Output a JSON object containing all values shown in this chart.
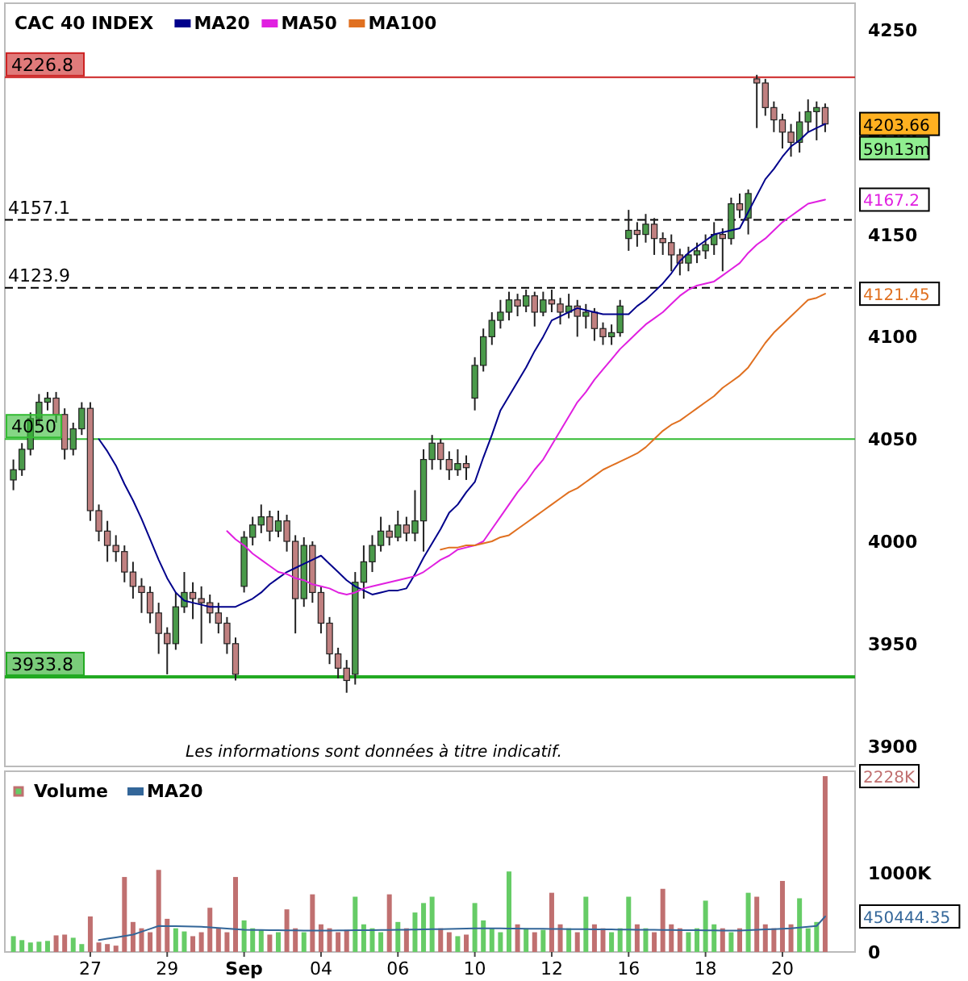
{
  "chart_data": [
    {
      "type": "candlestick",
      "title": "CAC 40 INDEX",
      "legend": "top left",
      "tick_labels": "y",
      "colors": [
        "#4a9a4a",
        "#4a9a4a",
        "#4a9a4a",
        "#4a9a4a",
        "#4a9a4a",
        "#c08080",
        "#c08080",
        "#4a9a4a",
        "#4a9a4a",
        "#c08080",
        "#c08080",
        "#c08080",
        "#c08080",
        "#c08080",
        "#c08080",
        "#c08080",
        "#c08080",
        "#c08080",
        "#c08080",
        "#4a9a4a",
        "#4a9a4a",
        "#c08080",
        "#c08080",
        "#c08080",
        "#c08080",
        "#c08080",
        "#c08080",
        "#4a9a4a",
        "#4a9a4a",
        "#4a9a4a",
        "#c08080",
        "#4a9a4a",
        "#c08080",
        "#c08080",
        "#4a9a4a",
        "#c08080",
        "#c08080",
        "#c08080",
        "#c08080",
        "#c08080",
        "#4a9a4a",
        "#4a9a4a",
        "#4a9a4a",
        "#4a9a4a",
        "#c08080",
        "#4a9a4a",
        "#c08080",
        "#4a9a4a",
        "#4a9a4a",
        "#4a9a4a",
        "#c08080",
        "#c08080",
        "#4a9a4a",
        "#c08080",
        "#4a9a4a",
        "#4a9a4a",
        "#4a9a4a",
        "#4a9a4a",
        "#4a9a4a",
        "#c08080",
        "#4a9a4a",
        "#c08080",
        "#4a9a4a",
        "#c08080",
        "#c08080",
        "#4a9a4a",
        "#c08080",
        "#4a9a4a",
        "#c08080",
        "#c08080",
        "#4a9a4a",
        "#4a9a4a",
        "#4a9a4a",
        "#c08080",
        "#4a9a4a",
        "#c08080",
        "#c08080",
        "#c08080",
        "#c08080",
        "#4a9a4a",
        "#4a9a4a",
        "#4a9a4a",
        "#4a9a4a",
        "#c08080",
        "#4a9a4a",
        "#c08080",
        "#4a9a4a",
        "#c08080",
        "#c08080",
        "#c08080",
        "#c08080",
        "#c08080",
        "#4a9a4a",
        "#4a9a4a",
        "#4a9a4a",
        "#c08080"
      ],
      "categories": [
        null,
        null,
        null,
        null,
        null,
        null,
        null,
        null,
        null,
        null,
        null,
        null,
        null,
        null,
        null,
        null,
        null,
        null,
        null,
        null,
        null,
        null,
        null,
        null,
        null,
        null,
        null,
        null,
        null,
        null,
        null,
        null,
        null,
        null,
        null,
        null,
        null,
        null,
        null,
        null,
        null,
        null,
        null,
        null,
        null,
        null,
        null,
        null,
        null,
        null,
        null,
        null,
        null,
        null,
        null,
        null,
        null,
        null,
        null,
        null,
        null,
        null,
        null,
        null,
        null,
        null,
        null,
        null,
        null,
        null,
        null,
        null,
        null,
        null,
        null,
        null,
        null,
        null,
        null,
        null,
        null,
        null,
        null,
        null,
        null,
        null,
        null,
        null,
        null,
        null,
        null,
        null,
        null,
        null,
        null,
        null
      ],
      "ohlc": [
        [
          4030,
          4040,
          4025,
          4035
        ],
        [
          4035,
          4048,
          4032,
          4045
        ],
        [
          4045,
          4063,
          4042,
          4060
        ],
        [
          4060,
          4072,
          4057,
          4068
        ],
        [
          4068,
          4073,
          4064,
          4070
        ],
        [
          4070,
          4073,
          4058,
          4062
        ],
        [
          4062,
          4065,
          4040,
          4045
        ],
        [
          4045,
          4058,
          4042,
          4055
        ],
        [
          4055,
          4068,
          4052,
          4065
        ],
        [
          4065,
          4068,
          4010,
          4015
        ],
        [
          4015,
          4018,
          4000,
          4005
        ],
        [
          4005,
          4010,
          3990,
          3998
        ],
        [
          3998,
          4003,
          3990,
          3995
        ],
        [
          3995,
          3998,
          3980,
          3985
        ],
        [
          3985,
          3990,
          3972,
          3978
        ],
        [
          3978,
          3982,
          3965,
          3975
        ],
        [
          3975,
          3978,
          3960,
          3965
        ],
        [
          3965,
          3970,
          3945,
          3955
        ],
        [
          3955,
          3958,
          3935,
          3950
        ],
        [
          3950,
          3975,
          3947,
          3968
        ],
        [
          3968,
          3985,
          3965,
          3975
        ],
        [
          3975,
          3980,
          3962,
          3972
        ],
        [
          3972,
          3978,
          3950,
          3970
        ],
        [
          3970,
          3974,
          3960,
          3965
        ],
        [
          3965,
          3970,
          3955,
          3960
        ],
        [
          3960,
          3963,
          3945,
          3950
        ],
        [
          3950,
          3953,
          3932,
          3935
        ],
        [
          3978,
          4005,
          3975,
          4002
        ],
        [
          4002,
          4012,
          3998,
          4008
        ],
        [
          4008,
          4018,
          4004,
          4012
        ],
        [
          4012,
          4015,
          4000,
          4005
        ],
        [
          4005,
          4015,
          4002,
          4010
        ],
        [
          4010,
          4013,
          3995,
          4000
        ],
        [
          4000,
          4003,
          3955,
          3972
        ],
        [
          3972,
          4002,
          3968,
          3998
        ],
        [
          3998,
          4000,
          3970,
          3975
        ],
        [
          3975,
          3978,
          3955,
          3960
        ],
        [
          3960,
          3963,
          3940,
          3945
        ],
        [
          3945,
          3948,
          3933,
          3938
        ],
        [
          3938,
          3942,
          3926,
          3932
        ],
        [
          3935,
          3985,
          3930,
          3980
        ],
        [
          3980,
          3998,
          3972,
          3990
        ],
        [
          3990,
          4003,
          3985,
          3998
        ],
        [
          3998,
          4012,
          3995,
          4005
        ],
        [
          4005,
          4008,
          3998,
          4002
        ],
        [
          4002,
          4015,
          4000,
          4008
        ],
        [
          4008,
          4012,
          4000,
          4004
        ],
        [
          4004,
          4025,
          4000,
          4010
        ],
        [
          4010,
          4045,
          3995,
          4040
        ],
        [
          4040,
          4052,
          4035,
          4048
        ],
        [
          4048,
          4050,
          4035,
          4040
        ],
        [
          4040,
          4044,
          4030,
          4035
        ],
        [
          4035,
          4045,
          4032,
          4038
        ],
        [
          4038,
          4042,
          4030,
          4036
        ],
        [
          4070,
          4090,
          4064,
          4086
        ],
        [
          4086,
          4104,
          4083,
          4100
        ],
        [
          4100,
          4112,
          4096,
          4108
        ],
        [
          4108,
          4118,
          4104,
          4112
        ],
        [
          4112,
          4122,
          4108,
          4118
        ],
        [
          4118,
          4121,
          4110,
          4115
        ],
        [
          4115,
          4123,
          4112,
          4120
        ],
        [
          4120,
          4122,
          4105,
          4112
        ],
        [
          4112,
          4122,
          4110,
          4118
        ],
        [
          4118,
          4123,
          4112,
          4116
        ],
        [
          4116,
          4119,
          4106,
          4112
        ],
        [
          4112,
          4121,
          4109,
          4115
        ],
        [
          4115,
          4118,
          4100,
          4110
        ],
        [
          4110,
          4116,
          4104,
          4112
        ],
        [
          4112,
          4114,
          4098,
          4104
        ],
        [
          4104,
          4107,
          4096,
          4100
        ],
        [
          4100,
          4106,
          4096,
          4102
        ],
        [
          4102,
          4118,
          4100,
          4115
        ],
        [
          4148,
          4162,
          4142,
          4152
        ],
        [
          4152,
          4156,
          4144,
          4150
        ],
        [
          4150,
          4160,
          4146,
          4155
        ],
        [
          4155,
          4158,
          4140,
          4148
        ],
        [
          4148,
          4151,
          4140,
          4146
        ],
        [
          4146,
          4150,
          4132,
          4140
        ],
        [
          4140,
          4143,
          4130,
          4136
        ],
        [
          4136,
          4144,
          4132,
          4140
        ],
        [
          4140,
          4146,
          4136,
          4142
        ],
        [
          4142,
          4150,
          4138,
          4145
        ],
        [
          4145,
          4156,
          4140,
          4150
        ],
        [
          4150,
          4153,
          4132,
          4148
        ],
        [
          4148,
          4168,
          4145,
          4165
        ],
        [
          4165,
          4170,
          4158,
          4162
        ],
        [
          4158,
          4172,
          4150,
          4170
        ],
        [
          4226,
          4228,
          4202,
          4224
        ],
        [
          4224,
          4226,
          4208,
          4212
        ],
        [
          4212,
          4215,
          4200,
          4206
        ],
        [
          4206,
          4209,
          4192,
          4200
        ],
        [
          4200,
          4204,
          4188,
          4195
        ],
        [
          4195,
          4210,
          4190,
          4205
        ],
        [
          4205,
          4216,
          4200,
          4210
        ],
        [
          4210,
          4215,
          4196,
          4212
        ],
        [
          4212,
          4214,
          4200,
          4204
        ]
      ],
      "series": [
        {
          "type": "line",
          "name": "MA20",
          "color": "#00008b",
          "values": [
            null,
            null,
            null,
            null,
            null,
            null,
            null,
            null,
            null,
            null,
            4050,
            4044,
            4037,
            4028,
            4020,
            4011,
            4001,
            3991,
            3982,
            3975,
            3971,
            3970,
            3969,
            3968,
            3968,
            3968,
            3968,
            3970,
            3972,
            3975,
            3979,
            3982,
            3985,
            3987,
            3989,
            3991,
            3993,
            3989,
            3985,
            3981,
            3978,
            3976,
            3974,
            3975,
            3976,
            3976,
            3977,
            3984,
            3992,
            3999,
            4006,
            4014,
            4018,
            4024,
            4029,
            4041,
            4052,
            4064,
            4071,
            4078,
            4085,
            4093,
            4100,
            4108,
            4110,
            4112,
            4114,
            4113,
            4112,
            4111,
            4111,
            4111,
            4111,
            4115,
            4118,
            4122,
            4126,
            4131,
            4137,
            4141,
            4144,
            4147,
            4150,
            4151,
            4152,
            4153,
            4161,
            4169,
            4177,
            4182,
            4188,
            4193,
            4196,
            4200,
            4202,
            4204
          ]
        },
        {
          "type": "line",
          "name": "MA50",
          "color": "#e020e0",
          "values": [
            null,
            null,
            null,
            null,
            null,
            null,
            null,
            null,
            null,
            null,
            null,
            null,
            null,
            null,
            null,
            null,
            null,
            null,
            null,
            null,
            null,
            null,
            null,
            null,
            null,
            4005,
            4001,
            3998,
            3994,
            3991,
            3988,
            3985,
            3984,
            3982,
            3981,
            3979,
            3978,
            3977,
            3975,
            3974,
            3975,
            3977,
            3978,
            3979,
            3980,
            3981,
            3982,
            3983,
            3985,
            3988,
            3991,
            3993,
            3996,
            3997,
            3998,
            4000,
            4006,
            4012,
            4018,
            4024,
            4029,
            4035,
            4040,
            4047,
            4054,
            4061,
            4068,
            4073,
            4079,
            4084,
            4089,
            4094,
            4098,
            4102,
            4106,
            4109,
            4112,
            4116,
            4120,
            4123,
            4125,
            4126,
            4127,
            4130,
            4133,
            4136,
            4141,
            4145,
            4148,
            4152,
            4156,
            4159,
            4162,
            4165,
            4166,
            4167
          ]
        },
        {
          "type": "line",
          "name": "MA100",
          "color": "#e07020",
          "values": [
            null,
            null,
            null,
            null,
            null,
            null,
            null,
            null,
            null,
            null,
            null,
            null,
            null,
            null,
            null,
            null,
            null,
            null,
            null,
            null,
            null,
            null,
            null,
            null,
            null,
            null,
            null,
            null,
            null,
            null,
            null,
            null,
            null,
            null,
            null,
            null,
            null,
            null,
            null,
            null,
            null,
            null,
            null,
            null,
            null,
            null,
            null,
            null,
            null,
            null,
            3996,
            3997,
            3997,
            3998,
            3998,
            3999,
            4000,
            4002,
            4003,
            4006,
            4009,
            4012,
            4015,
            4018,
            4021,
            4024,
            4026,
            4029,
            4032,
            4035,
            4037,
            4039,
            4041,
            4043,
            4046,
            4050,
            4054,
            4057,
            4059,
            4062,
            4065,
            4068,
            4071,
            4075,
            4078,
            4081,
            4085,
            4091,
            4097,
            4102,
            4106,
            4110,
            4114,
            4118,
            4119,
            4121
          ]
        }
      ],
      "ylim": [
        3890,
        4263
      ],
      "yticks": [
        3900,
        3950,
        4000,
        4050,
        4100,
        4150,
        4200,
        4250
      ],
      "ref_lines": [
        {
          "axis": "y",
          "value": 4226.8,
          "label": "4226.8",
          "color": "#cc2222",
          "line_style": "solid"
        },
        {
          "axis": "y",
          "value": 4157.1,
          "label": "4157.1",
          "color": "#000000",
          "line_style": "dashed"
        },
        {
          "axis": "y",
          "value": 4123.9,
          "label": "4123.9",
          "color": "#000000",
          "line_style": "dashed"
        },
        {
          "axis": "y",
          "value": 4050,
          "label": "4050",
          "color": "#33bb33",
          "line_style": "solid"
        },
        {
          "axis": "y",
          "value": 3933.8,
          "label": "3933.8",
          "color": "#22aa22",
          "line_style": "solid"
        }
      ],
      "annotations": [
        "Les informations sont données à titre indicatif.",
        "4203.66",
        "59h13m",
        "4167.2",
        "4121.45"
      ]
    },
    {
      "type": "bar",
      "legend": "top left",
      "categories": [
        null,
        null,
        null,
        null,
        null,
        null,
        null,
        null,
        null,
        "27",
        null,
        null,
        null,
        null,
        null,
        null,
        null,
        null,
        "29",
        null,
        null,
        null,
        null,
        null,
        null,
        null,
        null,
        "Sep",
        null,
        null,
        null,
        null,
        null,
        null,
        null,
        null,
        "04",
        null,
        null,
        null,
        null,
        null,
        null,
        null,
        null,
        "06",
        null,
        null,
        null,
        null,
        null,
        null,
        null,
        null,
        "10",
        null,
        null,
        null,
        null,
        null,
        null,
        null,
        null,
        "12",
        null,
        null,
        null,
        null,
        null,
        null,
        null,
        null,
        "16",
        null,
        null,
        null,
        null,
        null,
        null,
        null,
        null,
        "18",
        null,
        null,
        null,
        null,
        null,
        null,
        null,
        null,
        "20",
        null,
        null,
        null,
        null,
        null
      ],
      "series": [
        {
          "type": "bar",
          "name": "Volume",
          "colors": [
            "#66cc66",
            "#66cc66",
            "#66cc66",
            "#66cc66",
            "#66cc66",
            "#c07070",
            "#c07070",
            "#66cc66",
            "#66cc66",
            "#c07070",
            "#c07070",
            "#c07070",
            "#c07070",
            "#c07070",
            "#c07070",
            "#c07070",
            "#c07070",
            "#c07070",
            "#c07070",
            "#66cc66",
            "#66cc66",
            "#c07070",
            "#c07070",
            "#c07070",
            "#c07070",
            "#c07070",
            "#c07070",
            "#66cc66",
            "#66cc66",
            "#66cc66",
            "#c07070",
            "#66cc66",
            "#c07070",
            "#c07070",
            "#66cc66",
            "#c07070",
            "#c07070",
            "#c07070",
            "#c07070",
            "#c07070",
            "#66cc66",
            "#66cc66",
            "#66cc66",
            "#66cc66",
            "#c07070",
            "#66cc66",
            "#c07070",
            "#66cc66",
            "#66cc66",
            "#66cc66",
            "#c07070",
            "#c07070",
            "#66cc66",
            "#c07070",
            "#66cc66",
            "#66cc66",
            "#66cc66",
            "#66cc66",
            "#66cc66",
            "#c07070",
            "#66cc66",
            "#c07070",
            "#66cc66",
            "#c07070",
            "#c07070",
            "#66cc66",
            "#c07070",
            "#66cc66",
            "#c07070",
            "#c07070",
            "#66cc66",
            "#66cc66",
            "#66cc66",
            "#c07070",
            "#66cc66",
            "#c07070",
            "#c07070",
            "#c07070",
            "#c07070",
            "#66cc66",
            "#66cc66",
            "#66cc66",
            "#66cc66",
            "#c07070",
            "#66cc66",
            "#c07070",
            "#66cc66",
            "#c07070",
            "#c07070",
            "#c07070",
            "#c07070",
            "#c07070",
            "#66cc66",
            "#66cc66",
            "#66cc66",
            "#c07070"
          ],
          "values": [
            200,
            150,
            120,
            130,
            140,
            210,
            220,
            180,
            100,
            450,
            120,
            100,
            80,
            950,
            380,
            300,
            250,
            1040,
            420,
            300,
            260,
            200,
            250,
            560,
            300,
            250,
            950,
            400,
            300,
            280,
            220,
            250,
            540,
            300,
            250,
            730,
            350,
            300,
            250,
            280,
            700,
            350,
            300,
            250,
            730,
            380,
            300,
            500,
            620,
            700,
            300,
            250,
            200,
            220,
            620,
            400,
            300,
            250,
            1020,
            350,
            300,
            250,
            280,
            750,
            350,
            300,
            250,
            700,
            350,
            300,
            250,
            300,
            700,
            350,
            300,
            250,
            800,
            350,
            300,
            250,
            300,
            650,
            350,
            300,
            250,
            300,
            750,
            700,
            350,
            300,
            900,
            350,
            680,
            300,
            380,
            2228
          ]
        },
        {
          "type": "line",
          "name": "MA20",
          "color": "#336699",
          "values": [
            null,
            null,
            null,
            null,
            null,
            null,
            null,
            null,
            null,
            null,
            150,
            168,
            185,
            203,
            220,
            257,
            293,
            330,
            328,
            326,
            324,
            322,
            320,
            312,
            304,
            296,
            288,
            280,
            279,
            278,
            276,
            275,
            274,
            273,
            271,
            270,
            271,
            272,
            273,
            274,
            275,
            276,
            277,
            278,
            279,
            280,
            282,
            284,
            286,
            288,
            290,
            292,
            294,
            296,
            298,
            300,
            299,
            298,
            297,
            296,
            295,
            294,
            293,
            292,
            291,
            290,
            289,
            288,
            287,
            286,
            285,
            284,
            283,
            282,
            281,
            280,
            279,
            278,
            277,
            276,
            275,
            274,
            273,
            272,
            271,
            270,
            275,
            280,
            285,
            290,
            295,
            300,
            310,
            320,
            330,
            450
          ]
        }
      ],
      "ylim": [
        0,
        2290
      ],
      "yticks": [
        0,
        {
          "value": 1000,
          "label": "1000K"
        }
      ],
      "annotations": [
        "2228K",
        "450444.35"
      ]
    }
  ]
}
